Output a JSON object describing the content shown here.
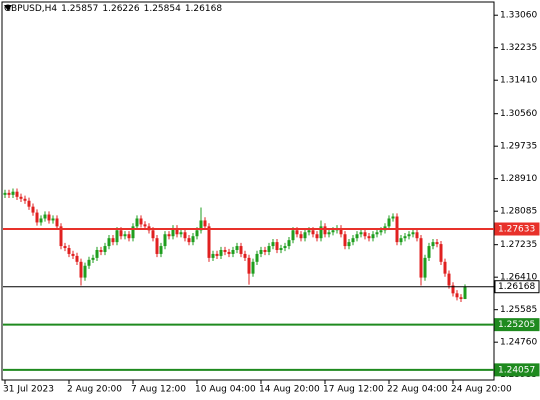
{
  "chart_data": {
    "type": "candlestick",
    "symbol": "GBPUSD,H4",
    "up_color": "#1f9e1f",
    "down_color": "#e02020",
    "ylim": [
      1.238,
      1.3337
    ],
    "yticks": [
      {
        "value": 1.3306,
        "label": "1.33060"
      },
      1.32235,
      {
        "value": 1.3141,
        "label": "1.31410"
      },
      {
        "value": 1.3056,
        "label": "1.30560"
      },
      1.29735,
      {
        "value": 1.2891,
        "label": "1.28910"
      },
      1.28085,
      1.27235,
      {
        "value": 1.2641,
        "label": "1.26410"
      },
      1.25585,
      {
        "value": 1.2476,
        "label": "1.24760"
      },
      1.23935
    ],
    "levels": [
      {
        "value": 1.27633,
        "color": "#e8312a"
      },
      {
        "value": 1.26168,
        "color": "#000000"
      },
      {
        "value": 1.25205,
        "color": "#1f8a1f"
      },
      {
        "value": 1.24057,
        "color": "#1f8a1f"
      }
    ],
    "categories": [
      "31 Jul 2023",
      null,
      null,
      null,
      null,
      null,
      null,
      null,
      null,
      null,
      null,
      null,
      null,
      null,
      null,
      null,
      "2 Aug 20:00",
      null,
      null,
      null,
      null,
      null,
      null,
      null,
      null,
      null,
      null,
      null,
      null,
      null,
      null,
      null,
      "7 Aug 12:00",
      null,
      null,
      null,
      null,
      null,
      null,
      null,
      null,
      null,
      null,
      null,
      null,
      null,
      null,
      null,
      "10 Aug 04:00",
      null,
      null,
      null,
      null,
      null,
      null,
      null,
      null,
      null,
      null,
      null,
      null,
      null,
      null,
      null,
      "14 Aug 20:00",
      null,
      null,
      null,
      null,
      null,
      null,
      null,
      null,
      null,
      null,
      null,
      null,
      null,
      null,
      null,
      "17 Aug 12:00",
      null,
      null,
      null,
      null,
      null,
      null,
      null,
      null,
      null,
      null,
      null,
      null,
      null,
      null,
      null,
      "22 Aug 04:00",
      null,
      null,
      null,
      null,
      null,
      null,
      null,
      null,
      null,
      null,
      null,
      null,
      null,
      null,
      null,
      "24 Aug 20:00",
      null,
      null,
      null
    ],
    "open": [
      1.285,
      1.2855,
      1.285,
      1.2858,
      1.2845,
      1.284,
      1.2835,
      1.282,
      1.2805,
      1.278,
      1.279,
      1.28,
      1.2785,
      1.279,
      1.277,
      1.272,
      1.2715,
      1.27,
      1.2695,
      1.268,
      1.264,
      1.267,
      1.2685,
      1.269,
      1.271,
      1.2705,
      1.272,
      1.274,
      1.273,
      1.276,
      1.2745,
      1.275,
      1.274,
      1.277,
      1.279,
      1.2775,
      1.277,
      1.276,
      1.274,
      1.27,
      1.272,
      1.275,
      1.2745,
      1.2765,
      1.275,
      1.2755,
      1.274,
      1.273,
      1.2745,
      1.276,
      1.2785,
      1.277,
      1.269,
      1.27,
      1.2695,
      1.271,
      1.2705,
      1.27,
      1.271,
      1.272,
      1.27,
      1.269,
      1.265,
      1.268,
      1.27,
      1.271,
      1.2705,
      1.272,
      1.273,
      1.271,
      1.2715,
      1.272,
      1.2735,
      1.276,
      1.275,
      1.274,
      1.2755,
      1.276,
      1.275,
      1.274,
      1.277,
      1.275,
      1.2755,
      1.276,
      1.2765,
      1.275,
      1.272,
      1.273,
      1.274,
      1.275,
      1.2755,
      1.2745,
      1.274,
      1.275,
      1.2755,
      1.276,
      1.277,
      1.279,
      1.2795,
      1.273,
      1.274,
      1.2745,
      1.275,
      1.2755,
      1.274,
      1.264,
      1.269,
      1.272,
      1.273,
      1.2725,
      1.268,
      1.265,
      1.262,
      1.26,
      1.259,
      1.25857
    ],
    "high": [
      1.2863,
      1.2863,
      1.2866,
      1.2866,
      1.2853,
      1.2848,
      1.2843,
      1.2828,
      1.2813,
      1.2798,
      1.2808,
      1.2808,
      1.2798,
      1.2798,
      1.2778,
      1.2728,
      1.2723,
      1.2708,
      1.2703,
      1.2688,
      1.2678,
      1.2693,
      1.2698,
      1.2718,
      1.2718,
      1.2728,
      1.2748,
      1.2748,
      1.2768,
      1.2768,
      1.2758,
      1.2758,
      1.2778,
      1.2798,
      1.2798,
      1.2783,
      1.2778,
      1.2768,
      1.2748,
      1.2728,
      1.2758,
      1.2758,
      1.2773,
      1.2773,
      1.2763,
      1.2763,
      1.2748,
      1.2753,
      1.2768,
      1.2818,
      1.2793,
      1.2778,
      1.2708,
      1.2708,
      1.2718,
      1.2718,
      1.2713,
      1.2718,
      1.2728,
      1.2728,
      1.2708,
      1.2698,
      1.2688,
      1.2708,
      1.2718,
      1.2718,
      1.2728,
      1.2738,
      1.2738,
      1.2723,
      1.2728,
      1.2743,
      1.2768,
      1.2768,
      1.2758,
      1.2763,
      1.2768,
      1.2768,
      1.2758,
      1.2785,
      1.2778,
      1.2763,
      1.2768,
      1.2773,
      1.2773,
      1.2758,
      1.2738,
      1.2748,
      1.2758,
      1.2763,
      1.2763,
      1.2753,
      1.2758,
      1.2763,
      1.2768,
      1.2778,
      1.2798,
      1.2803,
      1.2803,
      1.2748,
      1.2753,
      1.2758,
      1.2763,
      1.2763,
      1.2748,
      1.2698,
      1.2728,
      1.2738,
      1.2738,
      1.2733,
      1.2688,
      1.2658,
      1.2628,
      1.2608,
      1.2598,
      1.26226
    ],
    "low": [
      1.2842,
      1.2842,
      1.2842,
      1.2837,
      1.2832,
      1.2827,
      1.2812,
      1.2797,
      1.2772,
      1.2772,
      1.2782,
      1.2777,
      1.2777,
      1.2762,
      1.2712,
      1.2707,
      1.2692,
      1.2687,
      1.2672,
      1.262,
      1.2632,
      1.2662,
      1.2677,
      1.2682,
      1.2697,
      1.2697,
      1.2712,
      1.2722,
      1.2722,
      1.2737,
      1.2737,
      1.2732,
      1.2732,
      1.2762,
      1.2767,
      1.2762,
      1.2752,
      1.2732,
      1.2692,
      1.2692,
      1.2712,
      1.2737,
      1.2737,
      1.2742,
      1.2742,
      1.2732,
      1.2722,
      1.2722,
      1.2737,
      1.2752,
      1.2762,
      1.268,
      1.2682,
      1.2687,
      1.2687,
      1.2697,
      1.2692,
      1.2692,
      1.2702,
      1.2692,
      1.2682,
      1.2622,
      1.2642,
      1.2672,
      1.2692,
      1.2697,
      1.2697,
      1.2712,
      1.2702,
      1.2702,
      1.2707,
      1.2712,
      1.2727,
      1.2742,
      1.2732,
      1.2732,
      1.2747,
      1.2742,
      1.2732,
      1.2732,
      1.2742,
      1.2742,
      1.2747,
      1.2752,
      1.2742,
      1.2712,
      1.2712,
      1.2722,
      1.2732,
      1.2742,
      1.2737,
      1.2732,
      1.2732,
      1.2742,
      1.2747,
      1.2752,
      1.2762,
      1.2782,
      1.2722,
      1.2722,
      1.2732,
      1.2737,
      1.2742,
      1.2732,
      1.262,
      1.2632,
      1.2682,
      1.2712,
      1.2717,
      1.2672,
      1.2642,
      1.2612,
      1.2592,
      1.2582,
      1.2578,
      1.25854
    ],
    "close": [
      1.2855,
      1.285,
      1.2858,
      1.2845,
      1.284,
      1.2835,
      1.282,
      1.2805,
      1.278,
      1.279,
      1.28,
      1.2785,
      1.279,
      1.277,
      1.272,
      1.2715,
      1.27,
      1.2695,
      1.268,
      1.264,
      1.267,
      1.2685,
      1.269,
      1.271,
      1.2705,
      1.272,
      1.274,
      1.273,
      1.276,
      1.2745,
      1.275,
      1.274,
      1.277,
      1.279,
      1.2775,
      1.277,
      1.276,
      1.274,
      1.27,
      1.272,
      1.275,
      1.2745,
      1.2765,
      1.275,
      1.2755,
      1.274,
      1.273,
      1.2745,
      1.276,
      1.2785,
      1.277,
      1.269,
      1.27,
      1.2695,
      1.271,
      1.2705,
      1.27,
      1.271,
      1.272,
      1.27,
      1.269,
      1.265,
      1.268,
      1.27,
      1.271,
      1.2705,
      1.272,
      1.273,
      1.271,
      1.2715,
      1.272,
      1.2735,
      1.276,
      1.275,
      1.274,
      1.2755,
      1.276,
      1.275,
      1.274,
      1.277,
      1.275,
      1.2755,
      1.276,
      1.2765,
      1.275,
      1.272,
      1.273,
      1.274,
      1.275,
      1.2755,
      1.2745,
      1.274,
      1.275,
      1.2755,
      1.276,
      1.277,
      1.279,
      1.2795,
      1.273,
      1.274,
      1.2745,
      1.275,
      1.2755,
      1.274,
      1.264,
      1.269,
      1.272,
      1.273,
      1.2725,
      1.268,
      1.265,
      1.262,
      1.26,
      1.259,
      1.25857,
      1.26168
    ]
  }
}
